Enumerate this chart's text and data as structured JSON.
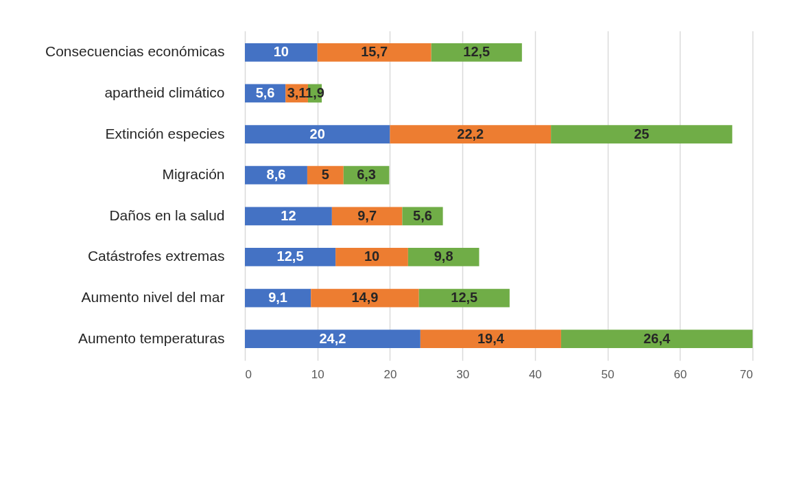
{
  "chart_data": {
    "type": "bar",
    "orientation": "horizontal",
    "stacked": true,
    "categories": [
      "Consecuencias económicas",
      "apartheid climático",
      "Extinción especies",
      "Migración",
      "Daños en la salud",
      "Catástrofes extremas",
      "Aumento nivel del mar",
      "Aumento temperaturas"
    ],
    "series": [
      {
        "color": "#4472c4",
        "values": [
          10,
          5.6,
          20,
          8.6,
          12,
          12.5,
          9.1,
          24.2
        ],
        "value_labels": [
          "10",
          "5,6",
          "20",
          "8,6",
          "12",
          "12,5",
          "9,1",
          "24,2"
        ]
      },
      {
        "color": "#ed7d31",
        "values": [
          15.7,
          3.1,
          22.2,
          5,
          9.7,
          10,
          14.9,
          19.4
        ],
        "value_labels": [
          "15,7",
          "3,1",
          "22,2",
          "5",
          "9,7",
          "10",
          "14,9",
          "19,4"
        ]
      },
      {
        "color": "#70ad47",
        "values": [
          12.5,
          1.9,
          25,
          6.3,
          5.6,
          9.8,
          12.5,
          26.4
        ],
        "value_labels": [
          "12,5",
          "1,9",
          "25",
          "6,3",
          "5,6",
          "9,8",
          "12,5",
          "26,4"
        ]
      }
    ],
    "xlim": [
      0,
      70
    ],
    "xticks": [
      0,
      10,
      20,
      30,
      40,
      50,
      60,
      70
    ],
    "grid": "x",
    "legend": false
  }
}
